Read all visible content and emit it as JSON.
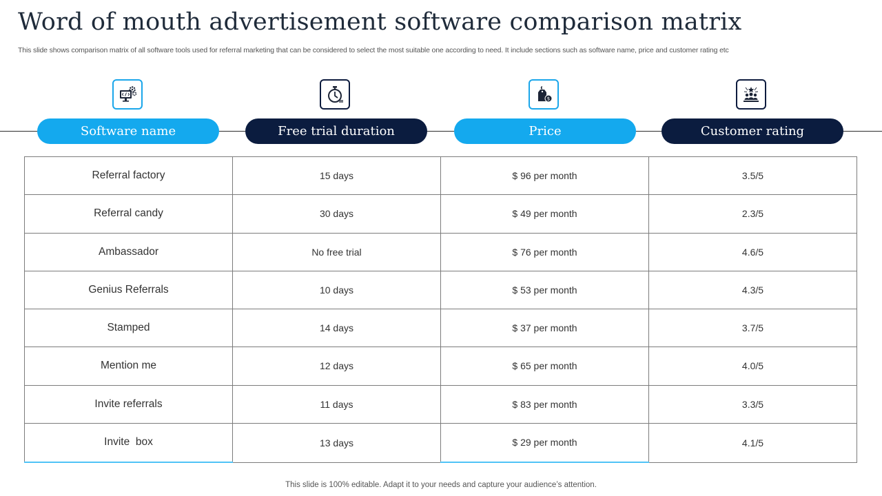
{
  "title": "Word of mouth advertisement software comparison matrix",
  "subtitle": "This slide shows comparison matrix of all software tools used for referral marketing that can be considered to select the most suitable one according to need. It include sections such as software name, price and customer rating etc",
  "columns": [
    {
      "label": "Software name",
      "icon": "monitor-gears-icon",
      "style": "light"
    },
    {
      "label": "Free trial duration",
      "icon": "stopwatch-icon",
      "style": "dark"
    },
    {
      "label": "Price",
      "icon": "price-tag-icon",
      "style": "light"
    },
    {
      "label": "Customer rating",
      "icon": "rating-people-icon",
      "style": "dark"
    }
  ],
  "rows": [
    [
      "Referral factory",
      "15 days",
      "$ 96 per month",
      "3.5/5"
    ],
    [
      "Referral candy",
      "30 days",
      "$ 49 per month",
      "2.3/5"
    ],
    [
      "Ambassador",
      "No free trial",
      "$ 76 per month",
      "4.6/5"
    ],
    [
      "Genius Referrals",
      "10 days",
      "$ 53 per month",
      "4.3/5"
    ],
    [
      "Stamped",
      "14 days",
      "$ 37 per month",
      "3.7/5"
    ],
    [
      "Mention me",
      "12 days",
      "$ 65 per month",
      "4.0/5"
    ],
    [
      "Invite  referrals",
      "11 days",
      "$ 83 per month",
      "3.3/5"
    ],
    [
      "Invite  box",
      "13 days",
      "$ 29 per month",
      "4.1/5"
    ]
  ],
  "footer": "This slide is 100% editable. Adapt it to your needs and capture your audience’s attention.",
  "colors": {
    "accent_light": "#14a9ee",
    "accent_dark": "#0b1c3f",
    "title": "#1f2b3a",
    "border": "#7b7b7b"
  }
}
